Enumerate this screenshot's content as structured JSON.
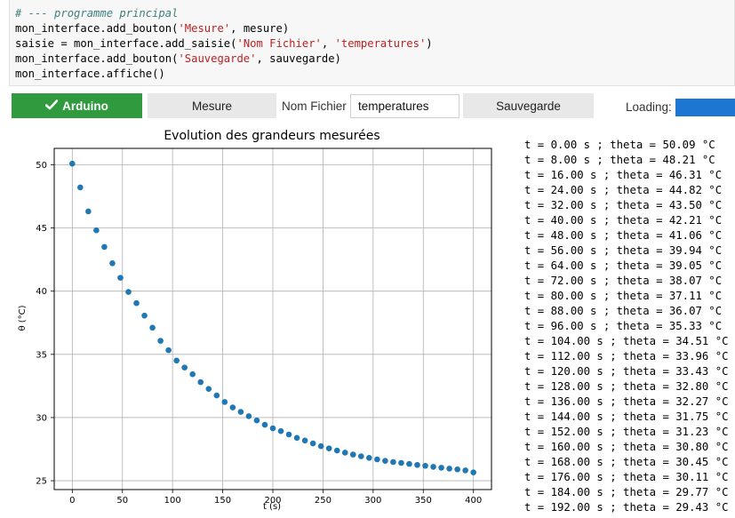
{
  "code_lines": [
    [
      {
        "t": "# --- programme principal",
        "c": "comment"
      }
    ],
    [
      {
        "t": "mon_interface.add_bouton(",
        "c": "text"
      },
      {
        "t": "'Mesure'",
        "c": "string"
      },
      {
        "t": ", mesure)",
        "c": "text"
      }
    ],
    [
      {
        "t": "saisie = mon_interface.add_saisie(",
        "c": "text"
      },
      {
        "t": "'Nom Fichier'",
        "c": "string"
      },
      {
        "t": ", ",
        "c": "text"
      },
      {
        "t": "'temperatures'",
        "c": "string"
      },
      {
        "t": ")",
        "c": "text"
      }
    ],
    [
      {
        "t": "mon_interface.add_bouton(",
        "c": "text"
      },
      {
        "t": "'Sauvegarde'",
        "c": "string"
      },
      {
        "t": ", sauvegarde)",
        "c": "text"
      }
    ],
    [
      {
        "t": "mon_interface.affiche()",
        "c": "text"
      }
    ]
  ],
  "widgets": {
    "arduino_check_icon": "checkmark-icon",
    "arduino_label": "Arduino",
    "mesure_label": "Mesure",
    "filename_label": "Nom Fichier",
    "filename_value": "temperatures",
    "save_label": "Sauvegarde",
    "loading_label": "Loading:",
    "loading_progress": 1.0,
    "colors": {
      "arduino": "#2f9a3e",
      "progress": "#1e76d3",
      "marker": "#1f77b4"
    }
  },
  "chart_data": {
    "type": "scatter",
    "title": "Evolution des grandeurs mesurées",
    "xlabel": "t (s)",
    "ylabel": "θ (°C)",
    "xlim": [
      -18,
      418
    ],
    "ylim": [
      24.3,
      51.3
    ],
    "xticks": [
      0,
      50,
      100,
      150,
      200,
      250,
      300,
      350,
      400
    ],
    "yticks": [
      25,
      30,
      35,
      40,
      45,
      50
    ],
    "grid": true,
    "x": [
      0,
      8,
      16,
      24,
      32,
      40,
      48,
      56,
      64,
      72,
      80,
      88,
      96,
      104,
      112,
      120,
      128,
      136,
      144,
      152,
      160,
      168,
      176,
      184,
      192,
      200,
      208,
      216,
      224,
      232,
      240,
      248,
      256,
      264,
      272,
      280,
      288,
      296,
      304,
      312,
      320,
      328,
      336,
      344,
      352,
      360,
      368,
      376,
      384,
      392,
      400
    ],
    "y": [
      50.09,
      48.21,
      46.31,
      44.82,
      43.5,
      42.21,
      41.06,
      39.94,
      39.05,
      38.07,
      37.11,
      36.07,
      35.33,
      34.51,
      33.96,
      33.43,
      32.8,
      32.27,
      31.75,
      31.23,
      30.8,
      30.45,
      30.11,
      29.77,
      29.43,
      29.15,
      28.93,
      28.66,
      28.39,
      28.18,
      27.95,
      27.73,
      27.56,
      27.39,
      27.22,
      27.07,
      26.93,
      26.81,
      26.69,
      26.57,
      26.48,
      26.41,
      26.33,
      26.25,
      26.18,
      26.1,
      26.03,
      25.96,
      25.9,
      25.82,
      25.66
    ]
  },
  "readout": [
    "t = 0.00 s ; theta = 50.09 °C",
    "t = 8.00 s ; theta = 48.21 °C",
    "t = 16.00 s ; theta = 46.31 °C",
    "t = 24.00 s ; theta = 44.82 °C",
    "t = 32.00 s ; theta = 43.50 °C",
    "t = 40.00 s ; theta = 42.21 °C",
    "t = 48.00 s ; theta = 41.06 °C",
    "t = 56.00 s ; theta = 39.94 °C",
    "t = 64.00 s ; theta = 39.05 °C",
    "t = 72.00 s ; theta = 38.07 °C",
    "t = 80.00 s ; theta = 37.11 °C",
    "t = 88.00 s ; theta = 36.07 °C",
    "t = 96.00 s ; theta = 35.33 °C",
    "t = 104.00 s ; theta = 34.51 °C",
    "t = 112.00 s ; theta = 33.96 °C",
    "t = 120.00 s ; theta = 33.43 °C",
    "t = 128.00 s ; theta = 32.80 °C",
    "t = 136.00 s ; theta = 32.27 °C",
    "t = 144.00 s ; theta = 31.75 °C",
    "t = 152.00 s ; theta = 31.23 °C",
    "t = 160.00 s ; theta = 30.80 °C",
    "t = 168.00 s ; theta = 30.45 °C",
    "t = 176.00 s ; theta = 30.11 °C",
    "t = 184.00 s ; theta = 29.77 °C",
    "t = 192.00 s ; theta = 29.43 °C"
  ]
}
